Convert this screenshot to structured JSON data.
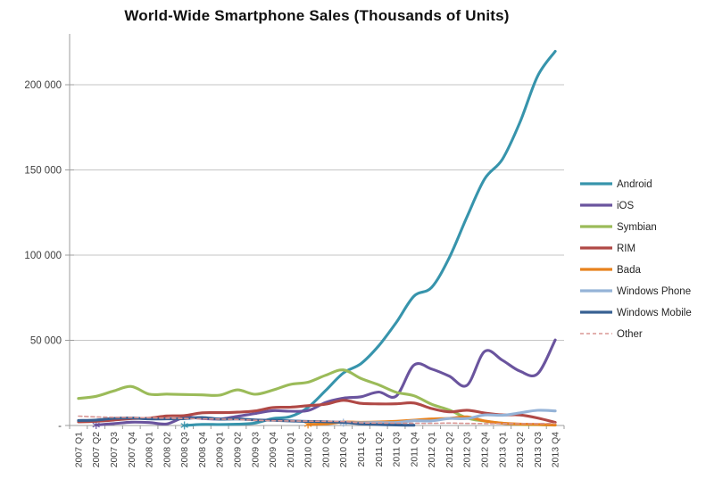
{
  "chart_data": {
    "type": "line",
    "title": "World-Wide Smartphone Sales (Thousands of Units)",
    "xlabel": "",
    "ylabel": "",
    "grid": true,
    "legend_position": "right",
    "y_axis": {
      "min": 0,
      "max": 226000,
      "major_unit": 50000,
      "ticks": [
        {
          "value": 0,
          "label": "-"
        },
        {
          "value": 50000,
          "label": "50 000"
        },
        {
          "value": 100000,
          "label": "100 000"
        },
        {
          "value": 150000,
          "label": "150 000"
        },
        {
          "value": 200000,
          "label": "200 000"
        }
      ]
    },
    "categories": [
      "2007 Q1",
      "2007 Q2",
      "2007 Q3",
      "2007 Q4",
      "2008 Q1",
      "2008 Q2",
      "2008 Q3",
      "2008 Q4",
      "2009 Q1",
      "2009 Q2",
      "2009 Q3",
      "2009 Q4",
      "2010 Q1",
      "2010 Q2",
      "2010 Q3",
      "2010 Q4",
      "2011 Q1",
      "2011 Q2",
      "2011 Q3",
      "2011 Q4",
      "2012 Q1",
      "2012 Q2",
      "2012 Q3",
      "2012 Q4",
      "2013 Q1",
      "2013 Q2",
      "2013 Q3",
      "2013 Q4"
    ],
    "series": [
      {
        "name": "Android",
        "color": "#3794AC",
        "dash": null,
        "first_point_marker": true,
        "values": [
          null,
          null,
          null,
          null,
          null,
          null,
          21,
          639,
          575,
          756,
          1425,
          4043,
          5227,
          10653,
          20544,
          30801,
          36350,
          46776,
          60490,
          75906,
          81067,
          98529,
          122480,
          144720,
          156186,
          177898,
          205023,
          219613
        ]
      },
      {
        "name": "iOS",
        "color": "#6A549E",
        "dash": null,
        "first_point_marker": true,
        "values": [
          null,
          270,
          1104,
          1928,
          1726,
          892,
          4720,
          4079,
          3848,
          5325,
          7040,
          8676,
          8360,
          8743,
          13484,
          16011,
          16883,
          19629,
          17295,
          35456,
          33121,
          28935,
          23550,
          43457,
          38332,
          31900,
          30330,
          50224
        ]
      },
      {
        "name": "Symbian",
        "color": "#9BBB59",
        "dash": null,
        "first_point_marker": false,
        "values": [
          15844,
          17110,
          20283,
          22903,
          18400,
          18405,
          18179,
          17949,
          17825,
          20881,
          18315,
          20722,
          24068,
          25387,
          29480,
          32642,
          27599,
          23853,
          19500,
          17458,
          12467,
          9072,
          4405,
          2569,
          1349,
          631,
          458,
          224
        ]
      },
      {
        "name": "RIM",
        "color": "#B04946",
        "dash": null,
        "first_point_marker": false,
        "values": [
          2081,
          2471,
          3192,
          4025,
          4312,
          5594,
          5800,
          7443,
          7534,
          7782,
          8523,
          10508,
          10753,
          11629,
          12508,
          14762,
          13004,
          12652,
          12701,
          13185,
          9939,
          7991,
          8947,
          7333,
          6219,
          6180,
          4401,
          1807
        ]
      },
      {
        "name": "Bada",
        "color": "#E8821D",
        "dash": null,
        "first_point_marker": true,
        "values": [
          null,
          null,
          null,
          null,
          null,
          null,
          null,
          null,
          null,
          null,
          null,
          null,
          null,
          577,
          921,
          2027,
          1862,
          2056,
          2479,
          3111,
          3844,
          4209,
          5055,
          2684,
          1371,
          838,
          633,
          241
        ]
      },
      {
        "name": "Windows Phone",
        "color": "#95B3D7",
        "dash": null,
        "first_point_marker": true,
        "values": [
          null,
          null,
          null,
          null,
          null,
          null,
          null,
          null,
          null,
          null,
          null,
          null,
          null,
          null,
          null,
          1602,
          1600,
          1724,
          1702,
          2759,
          2713,
          4087,
          4058,
          6186,
          5989,
          7407,
          8912,
          8534
        ]
      },
      {
        "name": "Windows Mobile",
        "color": "#376092",
        "dash": null,
        "first_point_marker": false,
        "values": [
          2931,
          3212,
          4180,
          4374,
          3858,
          3874,
          4053,
          4714,
          3739,
          3830,
          3260,
          3024,
          2696,
          2400,
          2204,
          1817,
          964,
          551,
          302,
          150,
          null,
          null,
          null,
          null,
          null,
          null,
          null,
          null
        ]
      },
      {
        "name": "Other",
        "color": "#D99694",
        "dash": "4,3",
        "first_point_marker": false,
        "values": [
          5513,
          5030,
          4813,
          4657,
          4539,
          4277,
          4060,
          3895,
          3747,
          3516,
          3028,
          2788,
          2654,
          2551,
          2459,
          2329,
          1555,
          1454,
          1395,
          1290,
          1243,
          1427,
          1200,
          1120,
          1080,
          1050,
          1100,
          1250
        ]
      }
    ],
    "style": {
      "gridline_color": "#C6C6C6",
      "axis_color": "#9C9C9C",
      "tick_label_color": "#3F3F3F",
      "legend_text_color": "#262626",
      "line_width": 3.1,
      "other_line_width": 1.6
    }
  }
}
